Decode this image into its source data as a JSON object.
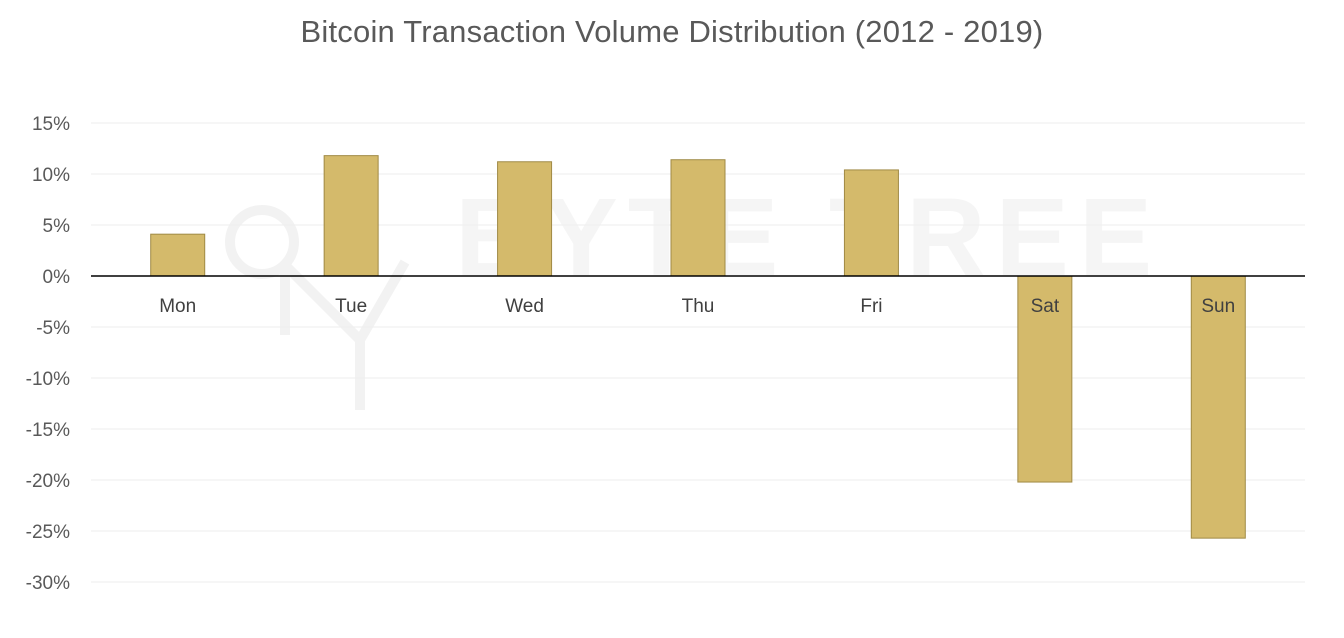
{
  "chart_data": {
    "type": "bar",
    "title": "Bitcoin Transaction Volume Distribution (2012 - 2019)",
    "xlabel": "",
    "ylabel": "",
    "categories": [
      "Mon",
      "Tue",
      "Wed",
      "Thu",
      "Fri",
      "Sat",
      "Sun"
    ],
    "values": [
      4.1,
      11.8,
      11.2,
      11.4,
      10.4,
      -20.2,
      -25.7
    ],
    "ylim": [
      -30,
      15
    ],
    "yticks": [
      15,
      10,
      5,
      0,
      -5,
      -10,
      -15,
      -20,
      -25,
      -30
    ],
    "ytick_labels": [
      "15%",
      "10%",
      "5%",
      "0%",
      "-5%",
      "-10%",
      "-15%",
      "-20%",
      "-25%",
      "-30%"
    ],
    "grid": true,
    "legend": "none",
    "bar_color": "#d4ba6b",
    "watermark": "BYTE TREE"
  }
}
